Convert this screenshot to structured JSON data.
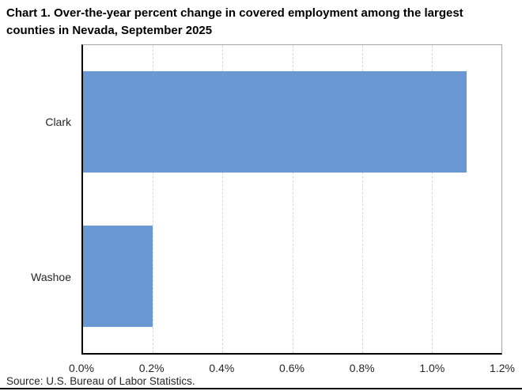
{
  "title": {
    "text": "Chart 1. Over-the-year percent change in covered employment among the largest counties in Nevada, September 2025",
    "line1": "Chart 1. Over-the-year percent change in covered employment among the largest",
    "line2": "counties in Nevada, September 2025"
  },
  "source": "Source: U.S. Bureau of Labor Statistics.",
  "colors": {
    "bar": "#6998d2",
    "gridline": "#d9d9d9",
    "plot_border": "#a6a6a6",
    "axis_line": "#000000",
    "title_text": "#000000",
    "label_text": "#262626"
  },
  "chart_data": {
    "type": "bar",
    "orientation": "horizontal",
    "title": "Chart 1. Over-the-year percent change in covered employment among the largest counties in Nevada, September 2025",
    "categories": [
      "Clark",
      "Washoe"
    ],
    "values": [
      1.1,
      0.2
    ],
    "value_unit": "percent",
    "xlabel": "",
    "ylabel": "",
    "xlim": [
      0.0,
      1.2
    ],
    "x_ticks": [
      "0.0%",
      "0.2%",
      "0.4%",
      "0.6%",
      "0.8%",
      "1.0%",
      "1.2%"
    ],
    "x_tick_values": [
      0.0,
      0.2,
      0.4,
      0.6,
      0.8,
      1.0,
      1.2
    ],
    "grid": "vertical-dashed",
    "legend": "none"
  }
}
